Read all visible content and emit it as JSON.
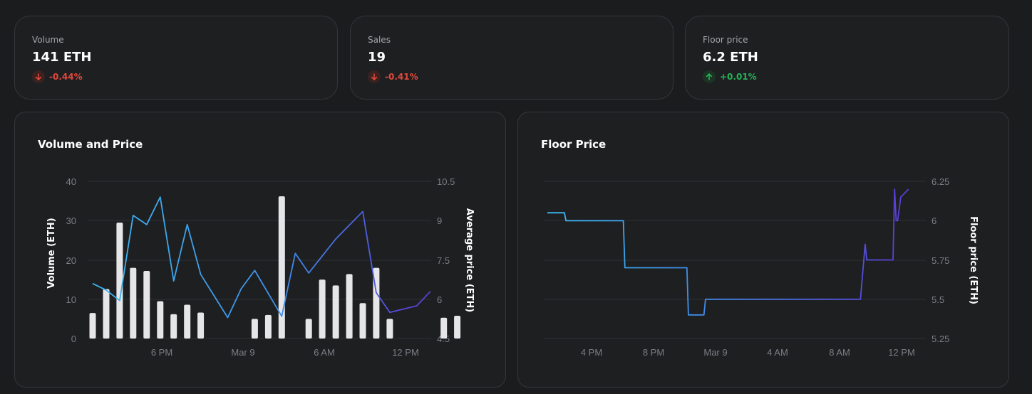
{
  "stats": [
    {
      "label": "Volume",
      "value": "141 ETH",
      "change": "-0.44%",
      "direction": "down"
    },
    {
      "label": "Sales",
      "value": "19",
      "change": "-0.41%",
      "direction": "down"
    },
    {
      "label": "Floor price",
      "value": "6.2 ETH",
      "change": "+0.01%",
      "direction": "up"
    }
  ],
  "colors": {
    "down": "#e2483b",
    "up": "#26b457",
    "bar": "#e6e6e8",
    "line_start": "#3db7f0",
    "line_end": "#5b3bd6"
  },
  "volume_chart": {
    "title": "Volume and Price",
    "ylabel_left": "Volume (ETH)",
    "ylabel_right": "Average price (ETH)",
    "left_ticks": [
      "40",
      "30",
      "20",
      "10",
      "0"
    ],
    "right_ticks": [
      "10.5",
      "9",
      "7.5",
      "6",
      "4.5"
    ],
    "x_ticks": [
      "6 PM",
      "Mar 9",
      "6 AM",
      "12 PM"
    ]
  },
  "floor_chart": {
    "title": "Floor Price",
    "ylabel_right": "Floor price (ETH)",
    "right_ticks": [
      "6.25",
      "6",
      "5.75",
      "5.5",
      "5.25"
    ],
    "x_ticks": [
      "4 PM",
      "8 PM",
      "Mar 9",
      "4 AM",
      "8 AM",
      "12 PM"
    ]
  },
  "chart_data": [
    {
      "type": "bar",
      "title": "Volume and Price",
      "ylabel": "Volume (ETH)",
      "y2label": "Average price (ETH)",
      "ylim": [
        0,
        40
      ],
      "y2lim": [
        4.5,
        10.5
      ],
      "x_hours": [
        0,
        1,
        2,
        3,
        4,
        5,
        6,
        7,
        8,
        9,
        10,
        12,
        13,
        14,
        16,
        17,
        18,
        19,
        20,
        21,
        22,
        23,
        24,
        26,
        27
      ],
      "series": [
        {
          "kind": "bar",
          "values": [
            6.5,
            12.6,
            29.5,
            18,
            17.2,
            9.5,
            6.2,
            8.6,
            6.6,
            null,
            null,
            5,
            6,
            36.2,
            5,
            15,
            13.5,
            16.4,
            9,
            18,
            5,
            null,
            null,
            5.3,
            5.8
          ]
        },
        {
          "kind": "line",
          "x_hours": [
            0,
            1,
            2,
            3,
            4,
            5,
            6,
            7,
            8,
            10,
            11,
            12,
            14,
            15,
            16,
            18,
            20,
            21,
            22,
            24,
            25
          ],
          "values": [
            6.6,
            6.35,
            5.95,
            9.2,
            8.85,
            9.9,
            6.7,
            8.85,
            6.95,
            5.3,
            6.4,
            7.1,
            5.35,
            7.75,
            7,
            8.3,
            9.35,
            6.25,
            5.5,
            5.75,
            6.3
          ]
        }
      ],
      "x_ticks": [
        "6 PM",
        "Mar 9",
        "6 AM",
        "12 PM"
      ]
    },
    {
      "type": "line",
      "title": "Floor Price",
      "ylabel": "Floor price (ETH)",
      "ylim": [
        5.25,
        6.25
      ],
      "x_ticks": [
        "4 PM",
        "8 PM",
        "Mar 9",
        "4 AM",
        "8 AM",
        "12 PM"
      ],
      "x_hours": [
        0,
        1.1,
        1.2,
        4.9,
        5.0,
        9.0,
        9.1,
        10.1,
        10.2,
        20.2,
        20.5,
        20.6,
        20.7,
        22.3,
        22.4,
        22.5,
        22.6,
        22.8,
        23.3
      ],
      "values": [
        6.05,
        6.05,
        6.0,
        6.0,
        5.7,
        5.7,
        5.4,
        5.4,
        5.5,
        5.5,
        5.85,
        5.75,
        5.75,
        5.75,
        6.2,
        6.0,
        6.0,
        6.15,
        6.2
      ]
    }
  ]
}
